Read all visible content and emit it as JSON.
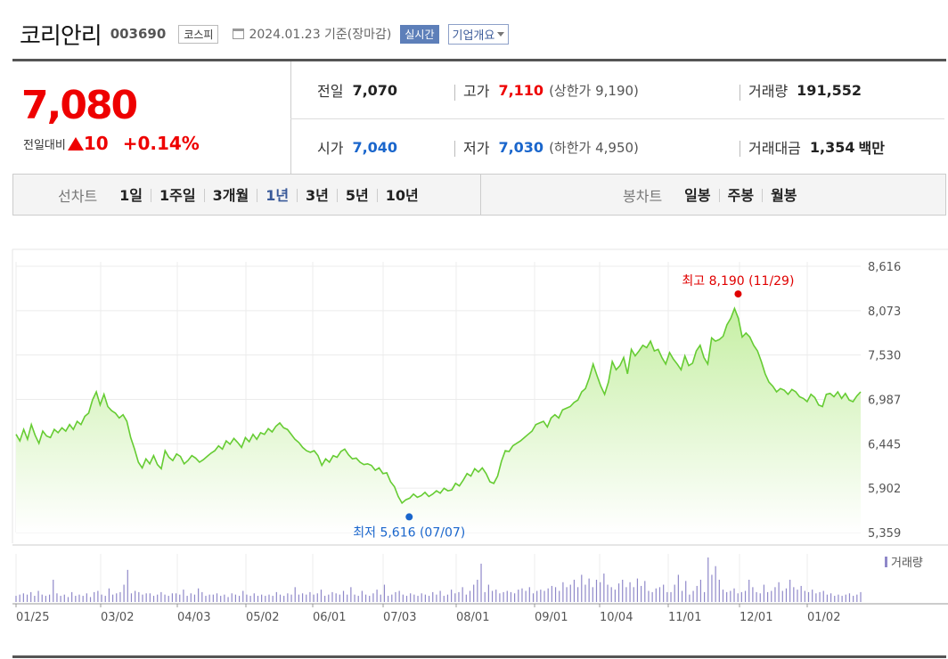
{
  "header": {
    "name": "코리안리",
    "code": "003690",
    "market": "코스피",
    "date_text": "2024.01.23  기준(장마감)",
    "realtime_label": "실시간",
    "overview_label": "기업개요"
  },
  "price": {
    "current": "7,080",
    "diff_label": "전일대비",
    "diff_value": "10",
    "diff_rate": "+0.14%",
    "prev_label": "전일",
    "prev_value": "7,070",
    "open_label": "시가",
    "open_value": "7,040",
    "high_label": "고가",
    "high_value": "7,110",
    "upper_limit": "(상한가 9,190)",
    "low_label": "저가",
    "low_value": "7,030",
    "lower_limit": "(하한가 4,950)",
    "volume_label": "거래량",
    "volume_value": "191,552",
    "amount_label": "거래대금",
    "amount_value": "1,354",
    "amount_unit": "백만"
  },
  "tabs": {
    "line_label": "선차트",
    "line_items": [
      "1일",
      "1주일",
      "3개월",
      "1년",
      "3년",
      "5년",
      "10년"
    ],
    "active": "1년",
    "candle_label": "봉차트",
    "candle_items": [
      "일봉",
      "주봉",
      "월봉"
    ]
  },
  "colors": {
    "line": "#66cc33",
    "fill_top": "#c6efa4",
    "high": "#e00000",
    "low": "#1a66cc",
    "volume": "#8f88c9",
    "axis": "#666666"
  },
  "chart_data": {
    "type": "area",
    "x_tick_labels": [
      "01/25",
      "03/02",
      "04/03",
      "05/02",
      "06/01",
      "07/03",
      "08/01",
      "09/01",
      "10/04",
      "11/01",
      "12/01",
      "01/02"
    ],
    "y_tick_labels": [
      "8,616",
      "8,073",
      "7,530",
      "6,987",
      "6,445",
      "5,902",
      "5,359"
    ],
    "ylim": [
      5359,
      8616
    ],
    "values": [
      6560,
      6480,
      6620,
      6500,
      6680,
      6550,
      6450,
      6600,
      6540,
      6520,
      6620,
      6580,
      6640,
      6600,
      6680,
      6620,
      6720,
      6680,
      6780,
      6820,
      6980,
      7080,
      6920,
      7050,
      6900,
      6850,
      6820,
      6760,
      6800,
      6720,
      6520,
      6380,
      6220,
      6150,
      6260,
      6200,
      6300,
      6190,
      6140,
      6360,
      6280,
      6240,
      6320,
      6290,
      6200,
      6240,
      6300,
      6270,
      6220,
      6250,
      6290,
      6330,
      6360,
      6420,
      6380,
      6480,
      6440,
      6510,
      6460,
      6400,
      6520,
      6470,
      6560,
      6500,
      6580,
      6560,
      6630,
      6590,
      6660,
      6700,
      6640,
      6620,
      6560,
      6500,
      6460,
      6400,
      6360,
      6340,
      6360,
      6300,
      6180,
      6260,
      6220,
      6300,
      6280,
      6350,
      6380,
      6310,
      6260,
      6270,
      6220,
      6190,
      6200,
      6180,
      6120,
      6150,
      6080,
      6090,
      5980,
      5920,
      5800,
      5720,
      5760,
      5780,
      5830,
      5790,
      5810,
      5850,
      5800,
      5830,
      5870,
      5840,
      5900,
      5870,
      5880,
      5960,
      5930,
      6000,
      6080,
      6050,
      6140,
      6100,
      6150,
      6080,
      5980,
      5960,
      6050,
      6230,
      6360,
      6350,
      6420,
      6450,
      6480,
      6520,
      6560,
      6600,
      6680,
      6700,
      6720,
      6650,
      6760,
      6800,
      6760,
      6860,
      6880,
      6900,
      6950,
      6980,
      7080,
      7120,
      7250,
      7420,
      7280,
      7150,
      7050,
      7200,
      7450,
      7350,
      7400,
      7500,
      7300,
      7600,
      7520,
      7580,
      7650,
      7620,
      7700,
      7580,
      7600,
      7500,
      7420,
      7560,
      7480,
      7420,
      7350,
      7520,
      7400,
      7430,
      7580,
      7650,
      7500,
      7420,
      7740,
      7700,
      7720,
      7760,
      7900,
      7980,
      8100,
      7980,
      7750,
      7800,
      7750,
      7650,
      7580,
      7450,
      7300,
      7200,
      7150,
      7080,
      7120,
      7100,
      7050,
      7110,
      7080,
      7020,
      7000,
      6960,
      7050,
      7010,
      6920,
      6900,
      7050,
      7060,
      7020,
      7080,
      7000,
      7060,
      6980,
      6960,
      7030,
      7080
    ]
  },
  "markers": {
    "high_label": "최고 8,190 (11/29)",
    "high_value": 8190,
    "low_label": "최저 5,616 (07/07)",
    "low_value": 5616
  },
  "volume_chart": {
    "legend": "거래량",
    "values": [
      5,
      6,
      7,
      6,
      8,
      5,
      9,
      6,
      5,
      6,
      18,
      7,
      5,
      6,
      4,
      8,
      5,
      6,
      5,
      7,
      4,
      8,
      9,
      6,
      5,
      11,
      6,
      7,
      8,
      14,
      26,
      7,
      9,
      8,
      6,
      7,
      7,
      5,
      6,
      8,
      6,
      5,
      7,
      7,
      6,
      10,
      5,
      7,
      6,
      11,
      8,
      5,
      6,
      6,
      7,
      5,
      6,
      4,
      7,
      6,
      5,
      9,
      6,
      5,
      7,
      5,
      6,
      5,
      6,
      5,
      8,
      6,
      5,
      7,
      6,
      12,
      6,
      7,
      6,
      8,
      6,
      7,
      10,
      5,
      6,
      8,
      7,
      6,
      9,
      6,
      12,
      6,
      5,
      9,
      6,
      5,
      7,
      10,
      6,
      14,
      5,
      6,
      8,
      9,
      6,
      5,
      7,
      6,
      5,
      7,
      6,
      5,
      8,
      6,
      9,
      5,
      6,
      10,
      7,
      8,
      12,
      6,
      9,
      14,
      18,
      31,
      8,
      14,
      9,
      10,
      7,
      8,
      9,
      8,
      7,
      10,
      11,
      9,
      12,
      7,
      9,
      10,
      9,
      11,
      13,
      12,
      9,
      16,
      12,
      14,
      18,
      12,
      22,
      14,
      19,
      12,
      18,
      16,
      23,
      14,
      12,
      10,
      15,
      18,
      12,
      16,
      12,
      19,
      13,
      17,
      9,
      8,
      11,
      12,
      14,
      8,
      8,
      14,
      22,
      9,
      17,
      6,
      9,
      13,
      18,
      8,
      36,
      22,
      29,
      18,
      10,
      8,
      9,
      11,
      7,
      8,
      9,
      18,
      12,
      8,
      7,
      14,
      8,
      9,
      12,
      16,
      9,
      11,
      18,
      12,
      10,
      13,
      9,
      8,
      10,
      7,
      8,
      9,
      6,
      7,
      5,
      6,
      5,
      6,
      7,
      5,
      6,
      8
    ]
  }
}
